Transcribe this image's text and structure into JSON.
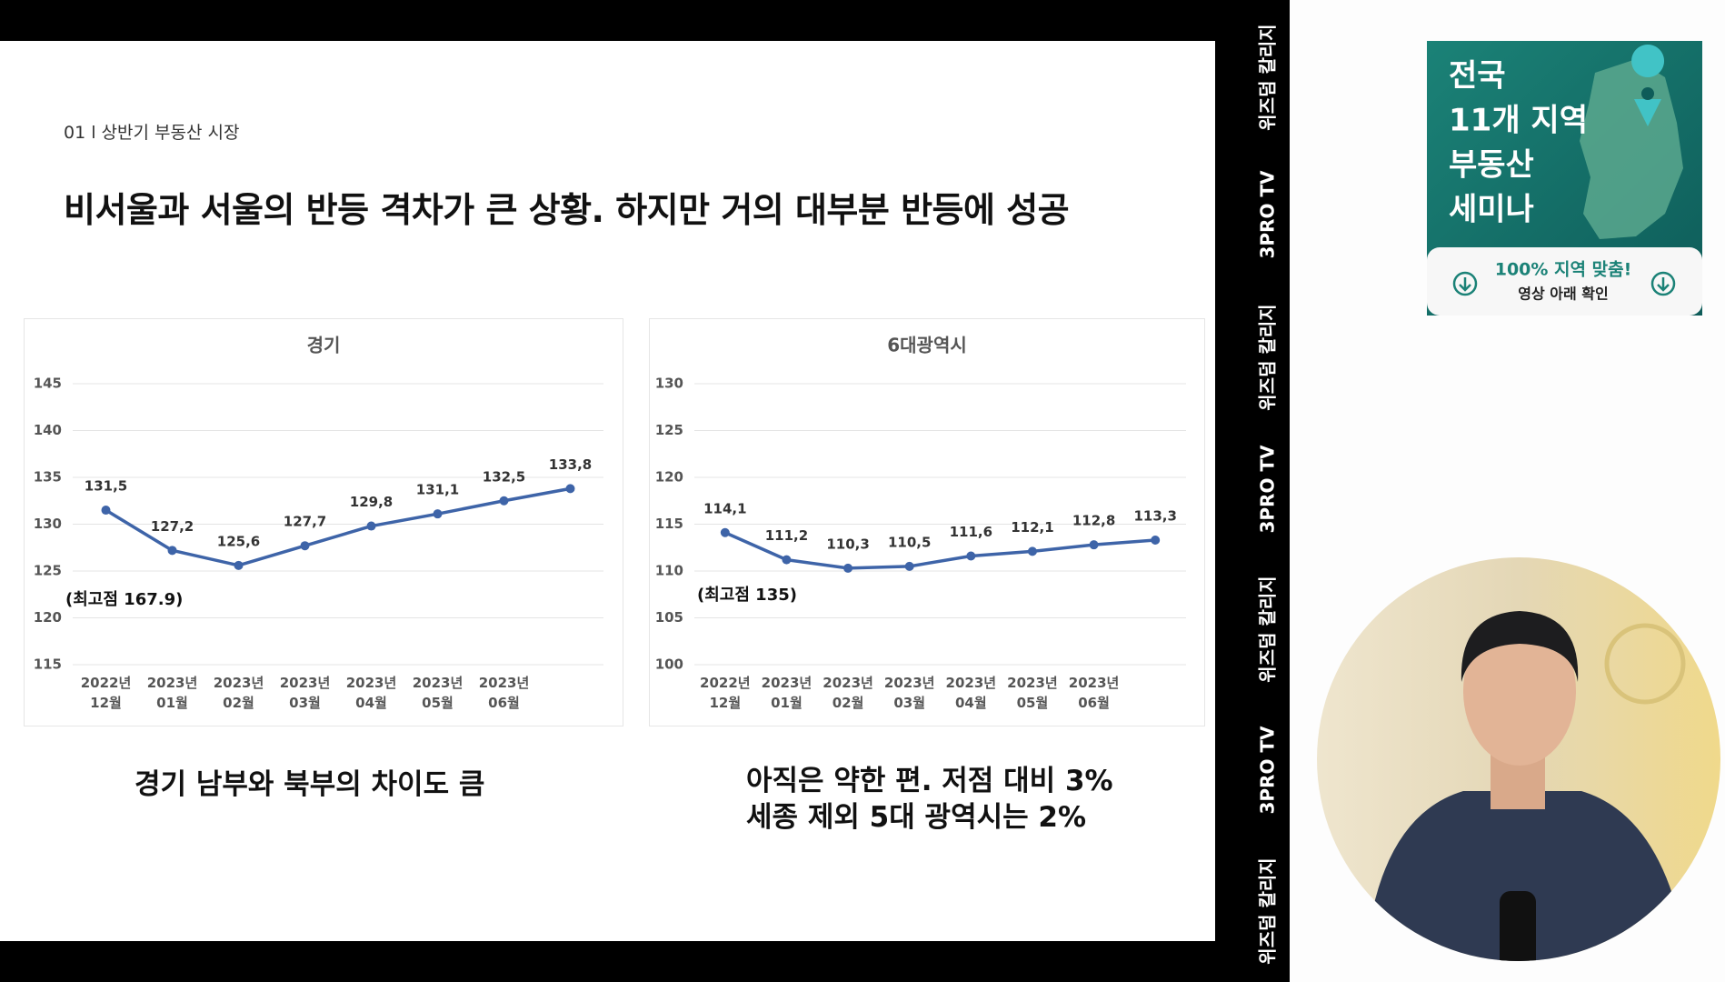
{
  "slide": {
    "section": "01 l 상반기 부동산 시장",
    "title": "비서울과 서울의 반등 격차가 큰 상황. 하지만 거의 대부분 반등에 성공",
    "caption_left": "경기 남부와 북부의 차이도 큼",
    "caption_right": [
      "아직은 약한 편. 저점 대비 3%",
      "세종 제외 5대 광역시는 2%"
    ]
  },
  "chart_data": [
    {
      "type": "line",
      "title": "경기",
      "categories": [
        "2022년\n12월",
        "2023년\n01월",
        "2023년\n02월",
        "2023년\n03월",
        "2023년\n04월",
        "2023년\n05월",
        "2023년\n06월",
        null
      ],
      "values": [
        131.5,
        127.2,
        125.6,
        127.7,
        129.8,
        131.1,
        132.5,
        133.8
      ],
      "value_labels": [
        "131,5",
        "127,2",
        "125,6",
        "127,7",
        "129,8",
        "131,1",
        "132,5",
        "133,8"
      ],
      "color": "#3e64a8",
      "ylim": [
        115,
        145
      ],
      "yticks": [
        115,
        120,
        125,
        130,
        135,
        140,
        145
      ],
      "grid": true,
      "annotation": "(최고점 167.9)"
    },
    {
      "type": "line",
      "title": "6대광역시",
      "categories": [
        "2022년\n12월",
        "2023년\n01월",
        "2023년\n02월",
        "2023년\n03월",
        "2023년\n04월",
        "2023년\n05월",
        "2023년\n06월",
        null
      ],
      "values": [
        114.1,
        111.2,
        110.3,
        110.5,
        111.6,
        112.1,
        112.8,
        113.3
      ],
      "value_labels": [
        "114,1",
        "111,2",
        "110,3",
        "110,5",
        "111,6",
        "112,1",
        "112,8",
        "113,3"
      ],
      "color": "#3e64a8",
      "ylim": [
        100,
        130
      ],
      "yticks": [
        100,
        105,
        110,
        115,
        120,
        125,
        130
      ],
      "grid": true,
      "annotation": "(최고점 135)"
    }
  ],
  "side_strip": [
    "위즈덤 칼리지",
    "3PRO TV",
    "위즈덤 칼리지",
    "3PRO TV",
    "위즈덤 칼리지",
    "3PRO TV",
    "위즈덤 칼리지"
  ],
  "banner": {
    "title_lines": [
      "전국",
      "11개 지역",
      "부동산",
      "세미나"
    ],
    "tagline": "100% 지역 맞춤!",
    "note": "영상 아래 확인"
  }
}
